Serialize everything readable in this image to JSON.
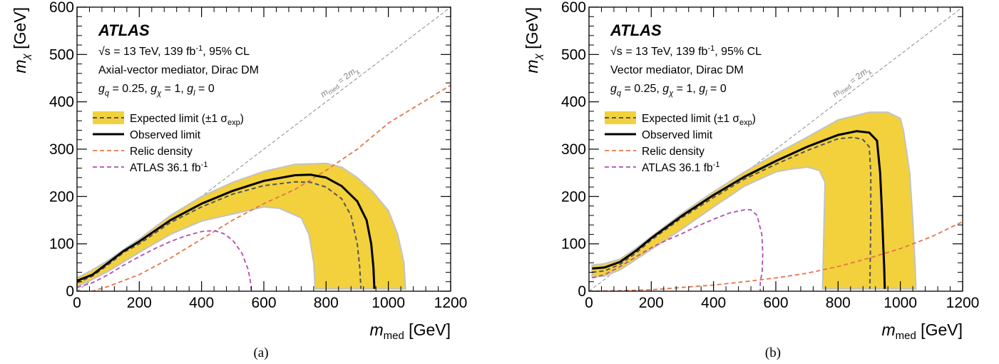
{
  "chart_data": [
    {
      "id": "a",
      "type": "line",
      "caption": "(a)",
      "experiment": "ATLAS",
      "info_lines": [
        "Axial-vector mediator, Dirac DM"
      ],
      "lumi_prefix": "= 13 TeV, 139 fb",
      "lumi_suffix": ", 95% CL",
      "sqrt_symbol": "√s",
      "superscript_minus1": "-1",
      "couplings": {
        "gq": "= 0.25,",
        "gchi": "= 1,",
        "gl": "= 0"
      },
      "xlabel_main": "m",
      "xlabel_sub": "med",
      "xlabel_unit": "[GeV]",
      "ylabel_main": "m",
      "ylabel_sub": "χ",
      "ylabel_unit": "[GeV]",
      "xlim": [
        0,
        1200
      ],
      "ylim": [
        0,
        600
      ],
      "xticks": [
        0,
        200,
        400,
        600,
        800,
        1000,
        1200
      ],
      "yticks": [
        0,
        100,
        200,
        300,
        400,
        500,
        600
      ],
      "diagonal_label": "m_med = 2m_χ",
      "legend": {
        "expected": "Expected limit (±1 σ",
        "expected_sub": "exp",
        "observed": "Observed limit",
        "relic": "Relic density",
        "atlas36": "ATLAS 36.1 fb"
      },
      "band": {
        "upper": [
          [
            0,
            28
          ],
          [
            50,
            45
          ],
          [
            100,
            65
          ],
          [
            150,
            88
          ],
          [
            200,
            110
          ],
          [
            300,
            160
          ],
          [
            400,
            200
          ],
          [
            500,
            230
          ],
          [
            600,
            253
          ],
          [
            700,
            268
          ],
          [
            800,
            270
          ],
          [
            850,
            262
          ],
          [
            900,
            240
          ],
          [
            950,
            210
          ],
          [
            1000,
            170
          ],
          [
            1030,
            120
          ],
          [
            1050,
            60
          ],
          [
            1055,
            5
          ]
        ],
        "lower": [
          [
            765,
            5
          ],
          [
            760,
            60
          ],
          [
            745,
            120
          ],
          [
            720,
            155
          ],
          [
            650,
            175
          ],
          [
            600,
            178
          ],
          [
            500,
            163
          ],
          [
            400,
            148
          ],
          [
            300,
            120
          ],
          [
            200,
            82
          ],
          [
            100,
            42
          ],
          [
            50,
            25
          ],
          [
            0,
            10
          ]
        ]
      },
      "observed": [
        [
          0,
          22
        ],
        [
          50,
          35
        ],
        [
          100,
          60
        ],
        [
          150,
          85
        ],
        [
          200,
          105
        ],
        [
          300,
          150
        ],
        [
          400,
          185
        ],
        [
          500,
          212
        ],
        [
          600,
          233
        ],
        [
          700,
          245
        ],
        [
          750,
          246
        ],
        [
          800,
          240
        ],
        [
          850,
          222
        ],
        [
          900,
          190
        ],
        [
          930,
          150
        ],
        [
          945,
          100
        ],
        [
          952,
          50
        ],
        [
          955,
          5
        ]
      ],
      "expected": [
        [
          0,
          18
        ],
        [
          50,
          32
        ],
        [
          100,
          56
        ],
        [
          150,
          82
        ],
        [
          200,
          100
        ],
        [
          300,
          145
        ],
        [
          400,
          178
        ],
        [
          500,
          205
        ],
        [
          600,
          223
        ],
        [
          700,
          231
        ],
        [
          750,
          230
        ],
        [
          800,
          220
        ],
        [
          850,
          195
        ],
        [
          880,
          160
        ],
        [
          900,
          100
        ],
        [
          908,
          50
        ],
        [
          912,
          5
        ]
      ],
      "relic": [
        [
          0,
          0
        ],
        [
          50,
          0
        ],
        [
          100,
          10
        ],
        [
          200,
          35
        ],
        [
          300,
          70
        ],
        [
          400,
          110
        ],
        [
          500,
          150
        ],
        [
          600,
          185
        ],
        [
          700,
          215
        ],
        [
          800,
          255
        ],
        [
          900,
          300
        ],
        [
          1000,
          355
        ],
        [
          1100,
          395
        ],
        [
          1200,
          435
        ]
      ],
      "atlas36": [
        [
          0,
          8
        ],
        [
          50,
          18
        ],
        [
          100,
          35
        ],
        [
          150,
          55
        ],
        [
          200,
          73
        ],
        [
          250,
          90
        ],
        [
          300,
          105
        ],
        [
          350,
          117
        ],
        [
          400,
          126
        ],
        [
          440,
          128
        ],
        [
          470,
          122
        ],
        [
          500,
          108
        ],
        [
          530,
          80
        ],
        [
          550,
          45
        ],
        [
          557,
          20
        ],
        [
          560,
          0
        ]
      ]
    },
    {
      "id": "b",
      "type": "line",
      "caption": "(b)",
      "experiment": "ATLAS",
      "info_lines": [
        "Vector mediator, Dirac DM"
      ],
      "lumi_prefix": "= 13 TeV, 139 fb",
      "lumi_suffix": ", 95% CL",
      "sqrt_symbol": "√s",
      "superscript_minus1": "-1",
      "couplings": {
        "gq": "= 0.25,",
        "gchi": "= 1,",
        "gl": "= 0"
      },
      "xlabel_main": "m",
      "xlabel_sub": "med",
      "xlabel_unit": "[GeV]",
      "ylabel_main": "m",
      "ylabel_sub": "χ",
      "ylabel_unit": "[GeV]",
      "xlim": [
        0,
        1200
      ],
      "ylim": [
        0,
        600
      ],
      "xticks": [
        0,
        200,
        400,
        600,
        800,
        1000,
        1200
      ],
      "yticks": [
        0,
        100,
        200,
        300,
        400,
        500,
        600
      ],
      "diagonal_label": "m_med = 2m_χ",
      "legend": {
        "expected": "Expected limit (±1 σ",
        "expected_sub": "exp",
        "observed": "Observed limit",
        "relic": "Relic density",
        "atlas36": "ATLAS 36.1 fb"
      },
      "band": {
        "upper": [
          [
            10,
            55
          ],
          [
            50,
            58
          ],
          [
            100,
            68
          ],
          [
            150,
            90
          ],
          [
            200,
            115
          ],
          [
            300,
            165
          ],
          [
            400,
            210
          ],
          [
            500,
            252
          ],
          [
            600,
            290
          ],
          [
            700,
            325
          ],
          [
            800,
            362
          ],
          [
            900,
            378
          ],
          [
            960,
            378
          ],
          [
            1000,
            365
          ],
          [
            1010,
            340
          ],
          [
            1030,
            250
          ],
          [
            1040,
            150
          ],
          [
            1047,
            60
          ],
          [
            1050,
            5
          ]
        ],
        "lower": [
          [
            750,
            5
          ],
          [
            752,
            60
          ],
          [
            755,
            150
          ],
          [
            758,
            230
          ],
          [
            740,
            255
          ],
          [
            700,
            262
          ],
          [
            650,
            258
          ],
          [
            600,
            252
          ],
          [
            500,
            222
          ],
          [
            400,
            178
          ],
          [
            300,
            132
          ],
          [
            200,
            88
          ],
          [
            100,
            45
          ],
          [
            50,
            32
          ],
          [
            10,
            30
          ]
        ]
      },
      "observed": [
        [
          10,
          48
        ],
        [
          50,
          50
        ],
        [
          100,
          62
        ],
        [
          150,
          85
        ],
        [
          200,
          112
        ],
        [
          300,
          160
        ],
        [
          400,
          203
        ],
        [
          500,
          242
        ],
        [
          600,
          275
        ],
        [
          700,
          305
        ],
        [
          800,
          330
        ],
        [
          860,
          338
        ],
        [
          900,
          335
        ],
        [
          925,
          318
        ],
        [
          935,
          250
        ],
        [
          940,
          180
        ],
        [
          945,
          100
        ],
        [
          948,
          50
        ],
        [
          950,
          5
        ]
      ],
      "expected": [
        [
          10,
          40
        ],
        [
          50,
          43
        ],
        [
          100,
          57
        ],
        [
          150,
          80
        ],
        [
          200,
          108
        ],
        [
          300,
          156
        ],
        [
          400,
          198
        ],
        [
          500,
          237
        ],
        [
          600,
          268
        ],
        [
          700,
          297
        ],
        [
          800,
          322
        ],
        [
          850,
          325
        ],
        [
          880,
          320
        ],
        [
          900,
          305
        ],
        [
          905,
          250
        ],
        [
          905,
          150
        ],
        [
          903,
          50
        ],
        [
          902,
          5
        ]
      ],
      "relic": [
        [
          0,
          0
        ],
        [
          100,
          1
        ],
        [
          200,
          3
        ],
        [
          300,
          8
        ],
        [
          400,
          13
        ],
        [
          500,
          20
        ],
        [
          600,
          28
        ],
        [
          700,
          38
        ],
        [
          800,
          52
        ],
        [
          900,
          70
        ],
        [
          1000,
          90
        ],
        [
          1100,
          115
        ],
        [
          1200,
          147
        ]
      ],
      "atlas36": [
        [
          10,
          28
        ],
        [
          50,
          35
        ],
        [
          100,
          52
        ],
        [
          150,
          72
        ],
        [
          200,
          92
        ],
        [
          250,
          108
        ],
        [
          300,
          122
        ],
        [
          350,
          138
        ],
        [
          400,
          152
        ],
        [
          450,
          165
        ],
        [
          500,
          172
        ],
        [
          520,
          172
        ],
        [
          540,
          160
        ],
        [
          555,
          120
        ],
        [
          558,
          80
        ],
        [
          556,
          40
        ],
        [
          550,
          20
        ],
        [
          550,
          0
        ]
      ]
    }
  ]
}
